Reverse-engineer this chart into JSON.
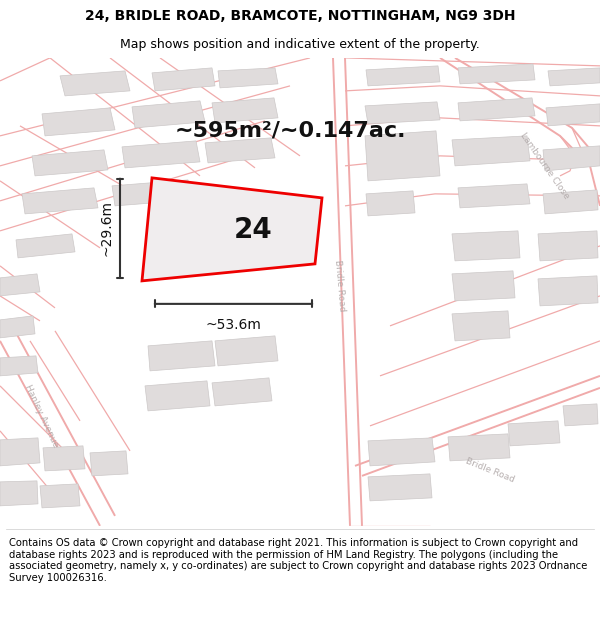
{
  "title_line1": "24, BRIDLE ROAD, BRAMCOTE, NOTTINGHAM, NG9 3DH",
  "title_line2": "Map shows position and indicative extent of the property.",
  "area_text": "~595m²/~0.147ac.",
  "plot_number": "24",
  "width_label": "~53.6m",
  "height_label": "~29.6m",
  "footer_text": "Contains OS data © Crown copyright and database right 2021. This information is subject to Crown copyright and database rights 2023 and is reproduced with the permission of HM Land Registry. The polygons (including the associated geometry, namely x, y co-ordinates) are subject to Crown copyright and database rights 2023 Ordnance Survey 100026316.",
  "map_bg": "#f7f4f4",
  "plot_color": "#ee0000",
  "plot_fill": "#f0edee",
  "building_fill": "#e0dcdc",
  "building_edge": "#ccc8c8",
  "road_line": "#f0aaaa",
  "street_label_color": "#b0a8a8",
  "measure_color": "#333333",
  "title_fontsize": 10,
  "subtitle_fontsize": 9,
  "area_fontsize": 16,
  "plot_num_fontsize": 20,
  "measure_fontsize": 10,
  "footer_fontsize": 7.2,
  "road_lw": 0.9,
  "road_lw_thick": 1.4
}
